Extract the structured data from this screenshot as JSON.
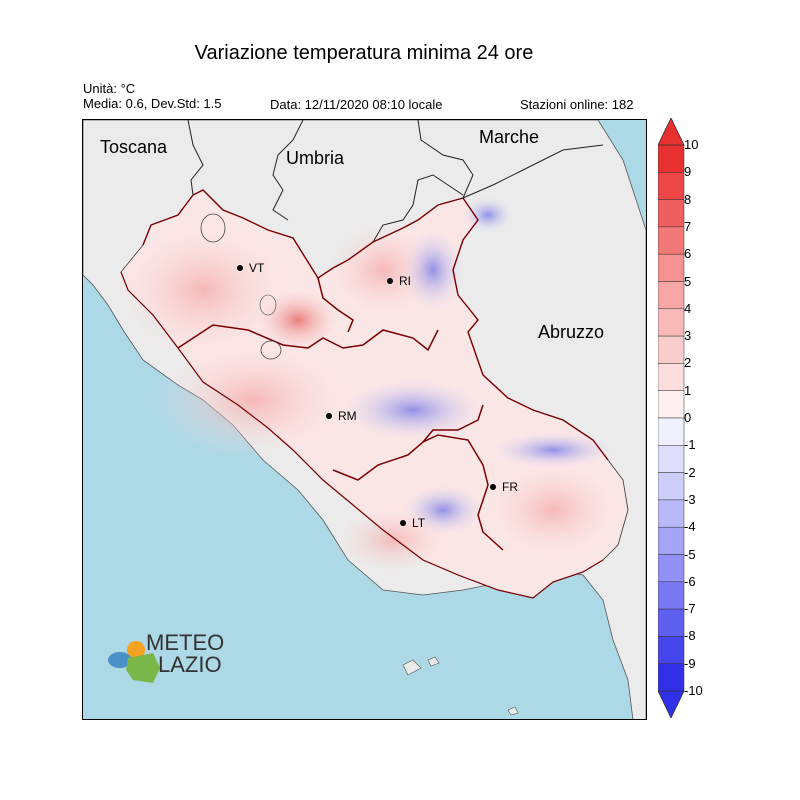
{
  "title": "Variazione temperatura minima 24 ore",
  "units": "Unità: °C",
  "stats": "Media: 0.6, Dev.Std: 1.5",
  "date": "Data: 12/11/2020 08:10 locale",
  "stations": "Stazioni online: 182",
  "regions": {
    "toscana": "Toscana",
    "umbria": "Umbria",
    "marche": "Marche",
    "abruzzo": "Abruzzo"
  },
  "cities": {
    "vt": "VT",
    "ri": "RI",
    "rm": "RM",
    "fr": "FR",
    "lt": "LT"
  },
  "colorbar": {
    "ticks": [
      "10",
      "9",
      "8",
      "7",
      "6",
      "5",
      "4",
      "3",
      "2",
      "1",
      "0",
      "-1",
      "-2",
      "-3",
      "-4",
      "-5",
      "-6",
      "-7",
      "-8",
      "-9",
      "-10"
    ],
    "min": -10,
    "max": 10
  },
  "logo": {
    "line1": "METEO",
    "line2": "LAZIO"
  },
  "colors": {
    "sea": "#add8e6",
    "land_outside": "#ebebeb",
    "warm": "#e85a5a",
    "cool": "#5a5ae8",
    "border": "#7a0000"
  }
}
